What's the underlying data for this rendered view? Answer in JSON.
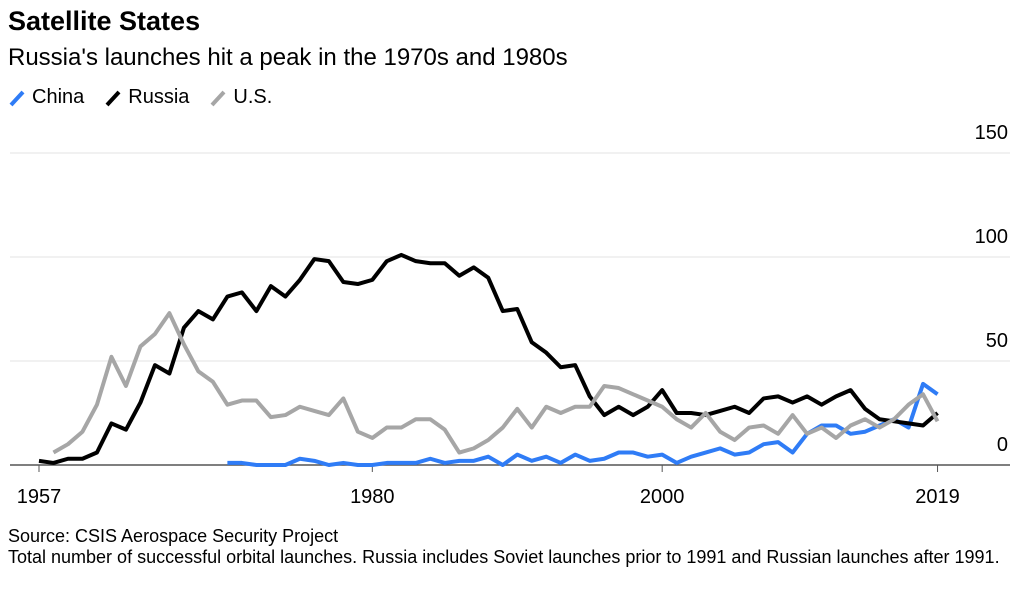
{
  "chart_data": {
    "type": "line",
    "title": "Satellite States",
    "subtitle": "Russia's launches hit a peak in the 1970s and 1980s",
    "source": "Source: CSIS Aerospace Security Project",
    "note": "Total number of successful orbital launches. Russia includes Soviet launches prior to 1991 and Russian launches after 1991.",
    "x": [
      1957,
      1958,
      1959,
      1960,
      1961,
      1962,
      1963,
      1964,
      1965,
      1966,
      1967,
      1968,
      1969,
      1970,
      1971,
      1972,
      1973,
      1974,
      1975,
      1976,
      1977,
      1978,
      1979,
      1980,
      1981,
      1982,
      1983,
      1984,
      1985,
      1986,
      1987,
      1988,
      1989,
      1990,
      1991,
      1992,
      1993,
      1994,
      1995,
      1996,
      1997,
      1998,
      1999,
      2000,
      2001,
      2002,
      2003,
      2004,
      2005,
      2006,
      2007,
      2008,
      2009,
      2010,
      2011,
      2012,
      2013,
      2014,
      2015,
      2016,
      2017,
      2018,
      2019
    ],
    "series": [
      {
        "name": "China",
        "color": "#2f7cf6",
        "values": [
          null,
          null,
          null,
          null,
          null,
          null,
          null,
          null,
          null,
          null,
          null,
          null,
          null,
          1,
          1,
          0,
          0,
          0,
          3,
          2,
          0,
          1,
          0,
          0,
          1,
          1,
          1,
          3,
          1,
          2,
          2,
          4,
          0,
          5,
          2,
          4,
          1,
          5,
          2,
          3,
          6,
          6,
          4,
          5,
          1,
          4,
          6,
          8,
          5,
          6,
          10,
          11,
          6,
          15,
          19,
          19,
          15,
          16,
          19,
          22,
          18,
          39,
          34
        ]
      },
      {
        "name": "Russia",
        "color": "#000000",
        "values": [
          2,
          1,
          3,
          3,
          6,
          20,
          17,
          30,
          48,
          44,
          66,
          74,
          70,
          81,
          83,
          74,
          86,
          81,
          89,
          99,
          98,
          88,
          87,
          89,
          98,
          101,
          98,
          97,
          97,
          91,
          95,
          90,
          74,
          75,
          59,
          54,
          47,
          48,
          33,
          24,
          28,
          24,
          28,
          36,
          25,
          25,
          24,
          26,
          28,
          25,
          32,
          33,
          30,
          33,
          29,
          33,
          36,
          27,
          22,
          21,
          20,
          19,
          25
        ]
      },
      {
        "name": "U.S.",
        "color": "#a6a6a6",
        "values": [
          null,
          6,
          10,
          16,
          29,
          52,
          38,
          57,
          63,
          73,
          58,
          45,
          40,
          29,
          31,
          31,
          23,
          24,
          28,
          26,
          24,
          32,
          16,
          13,
          18,
          18,
          22,
          22,
          17,
          6,
          8,
          12,
          18,
          27,
          18,
          28,
          25,
          28,
          28,
          38,
          37,
          34,
          31,
          28,
          22,
          18,
          25,
          16,
          12,
          18,
          19,
          15,
          24,
          15,
          18,
          13,
          19,
          22,
          18,
          22,
          29,
          34,
          21
        ]
      }
    ],
    "xlim": [
      1955,
      2024
    ],
    "xticks": [
      1957,
      1980,
      2000,
      2019
    ],
    "ylim": [
      0,
      150
    ],
    "yticks": [
      0,
      50,
      100,
      150
    ],
    "grid": true
  }
}
